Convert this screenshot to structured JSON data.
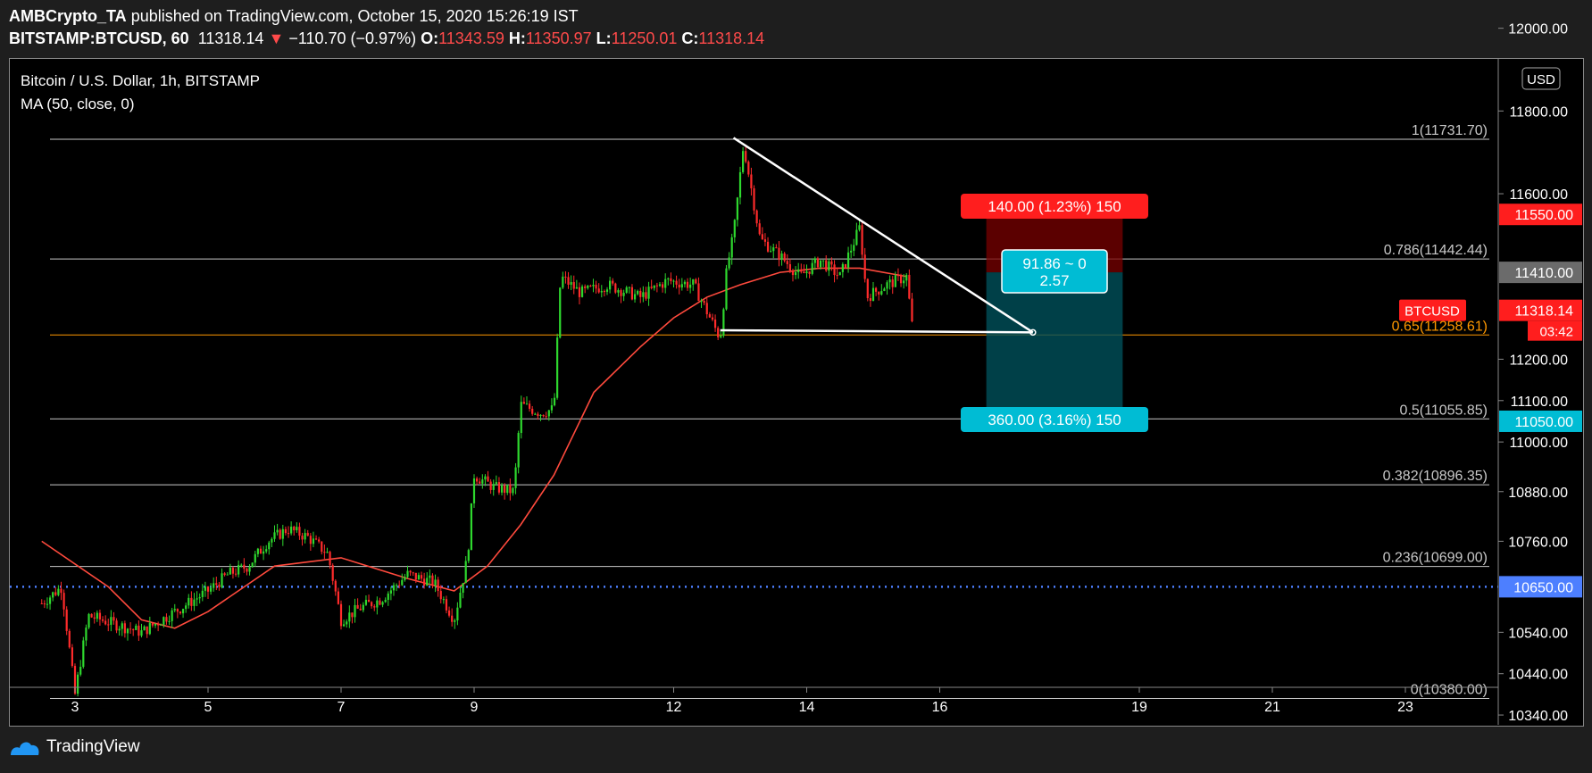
{
  "header": {
    "author": "AMBCrypto_TA",
    "published": "published on TradingView.com, October 15, 2020 15:26:19 IST",
    "symbol": "BITSTAMP:BTCUSD, 60",
    "last": "11318.14",
    "change": "−110.70 (−0.97%)",
    "open_label": "O:",
    "open": "11343.59",
    "high_label": "H:",
    "high": "11350.97",
    "low_label": "L:",
    "low": "11250.01",
    "close_label": "C:",
    "close": "11318.14"
  },
  "legend": {
    "title": "Bitcoin / U.S. Dollar, 1h, BITSTAMP",
    "ma": "MA (50, close, 0)"
  },
  "colors": {
    "up": "#2ed82e",
    "down": "#ff2b2b",
    "ma": "#ff4a3d",
    "stop": "#ff1e1e",
    "target": "#00bcd4",
    "support": "#ff9800",
    "dotted": "#4d7fff",
    "fib": "#c8c8c8",
    "trend": "#ffffff"
  },
  "chart_data": {
    "type": "candlestick",
    "currency": "USD",
    "y_ticks": [
      "12000.00",
      "11800.00",
      "11600.00",
      "11200.00",
      "11100.00",
      "11000.00",
      "10880.00",
      "10760.00",
      "10540.00",
      "10440.00",
      "10340.00"
    ],
    "x_ticks": [
      {
        "label": "3",
        "day": 3
      },
      {
        "label": "5",
        "day": 5
      },
      {
        "label": "7",
        "day": 7
      },
      {
        "label": "9",
        "day": 9
      },
      {
        "label": "12",
        "day": 12
      },
      {
        "label": "14",
        "day": 14
      },
      {
        "label": "16",
        "day": 16
      },
      {
        "label": "19",
        "day": 19
      },
      {
        "label": "21",
        "day": 21
      },
      {
        "label": "23",
        "day": 23
      }
    ],
    "price_range": [
      10340,
      12000
    ],
    "fib_levels": [
      {
        "level": "1",
        "price": 11731.7,
        "label": "1(11731.70)"
      },
      {
        "level": "0.786",
        "price": 11442.44,
        "label": "0.786(11442.44)"
      },
      {
        "level": "0.65",
        "price": 11258.61,
        "label": "0.65(11258.61)"
      },
      {
        "level": "0.5",
        "price": 11055.85,
        "label": "0.5(11055.85)"
      },
      {
        "level": "0.382",
        "price": 10896.35,
        "label": "0.382(10896.35)"
      },
      {
        "level": "0.236",
        "price": 10699.0,
        "label": "0.236(10699.00)"
      },
      {
        "level": "0",
        "price": 10380.0,
        "label": "0(10380.00)"
      }
    ],
    "price_tags": [
      {
        "label": "11550.00",
        "price": 11550,
        "color": "#ff1e1e"
      },
      {
        "label": "11410.00",
        "price": 11410,
        "color": "#6b6b6b"
      },
      {
        "label": "11318.14",
        "price": 11318.14,
        "color": "#ff1e1e"
      },
      {
        "label": "11050.00",
        "price": 11050,
        "color": "#00bcd4"
      },
      {
        "label": "10650.00",
        "price": 10650,
        "color": "#4d7fff"
      }
    ],
    "symbol_tag": "BTCUSD",
    "countdown": "03:42",
    "dotted_level": 10650,
    "position": {
      "entry": 11410,
      "stop": 11550,
      "target": 11050,
      "start_day": 16.7,
      "end_day": 18.75,
      "stop_label": "140.00 (1.23%) 150",
      "target_label": "360.00 (3.16%) 150",
      "ratio_line1": "91.86 ~ 0",
      "ratio_line2": "2.57"
    },
    "trendlines": [
      {
        "from": [
          12.9,
          11735
        ],
        "to": [
          17.4,
          11265
        ]
      },
      {
        "from": [
          12.7,
          11270
        ],
        "to": [
          17.4,
          11265
        ]
      }
    ],
    "price_path": [
      [
        2.5,
        10610
      ],
      [
        2.8,
        10650
      ],
      [
        3.0,
        10390
      ],
      [
        3.2,
        10580
      ],
      [
        3.6,
        10560
      ],
      [
        4.0,
        10540
      ],
      [
        4.3,
        10570
      ],
      [
        4.6,
        10600
      ],
      [
        5.0,
        10640
      ],
      [
        5.3,
        10680
      ],
      [
        5.6,
        10700
      ],
      [
        5.9,
        10760
      ],
      [
        6.2,
        10790
      ],
      [
        6.5,
        10770
      ],
      [
        6.8,
        10730
      ],
      [
        7.0,
        10570
      ],
      [
        7.3,
        10600
      ],
      [
        7.6,
        10620
      ],
      [
        8.0,
        10680
      ],
      [
        8.4,
        10660
      ],
      [
        8.7,
        10570
      ],
      [
        8.9,
        10720
      ],
      [
        9.0,
        10920
      ],
      [
        9.3,
        10890
      ],
      [
        9.6,
        10880
      ],
      [
        9.7,
        11090
      ],
      [
        10.0,
        11070
      ],
      [
        10.2,
        11080
      ],
      [
        10.3,
        11400
      ],
      [
        10.6,
        11360
      ],
      [
        11.0,
        11380
      ],
      [
        11.5,
        11350
      ],
      [
        11.9,
        11390
      ],
      [
        12.3,
        11380
      ],
      [
        12.7,
        11250
      ],
      [
        12.8,
        11420
      ],
      [
        12.9,
        11500
      ],
      [
        13.05,
        11720
      ],
      [
        13.3,
        11490
      ],
      [
        13.6,
        11450
      ],
      [
        13.9,
        11400
      ],
      [
        14.2,
        11440
      ],
      [
        14.5,
        11400
      ],
      [
        14.8,
        11520
      ],
      [
        14.9,
        11350
      ],
      [
        15.2,
        11380
      ],
      [
        15.5,
        11400
      ],
      [
        15.6,
        11260
      ]
    ],
    "ma_path": [
      [
        2.5,
        10760
      ],
      [
        3.5,
        10650
      ],
      [
        4.0,
        10570
      ],
      [
        4.5,
        10550
      ],
      [
        5.0,
        10590
      ],
      [
        6.0,
        10700
      ],
      [
        7.0,
        10720
      ],
      [
        8.0,
        10670
      ],
      [
        8.7,
        10640
      ],
      [
        9.2,
        10700
      ],
      [
        9.7,
        10800
      ],
      [
        10.2,
        10920
      ],
      [
        10.8,
        11120
      ],
      [
        11.5,
        11230
      ],
      [
        12.0,
        11300
      ],
      [
        12.5,
        11350
      ],
      [
        13.0,
        11380
      ],
      [
        13.6,
        11410
      ],
      [
        14.2,
        11420
      ],
      [
        14.8,
        11420
      ],
      [
        15.5,
        11400
      ]
    ]
  },
  "footer": {
    "brand": "TradingView"
  }
}
